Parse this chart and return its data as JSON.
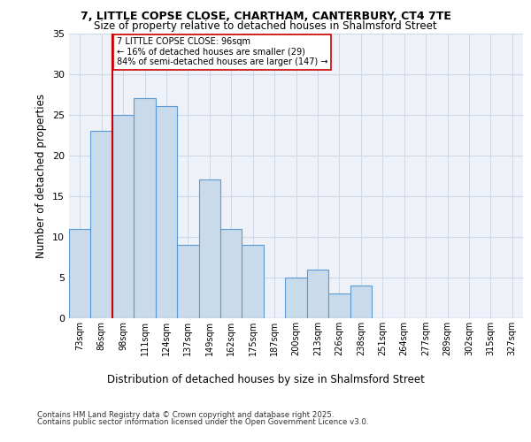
{
  "title_line1": "7, LITTLE COPSE CLOSE, CHARTHAM, CANTERBURY, CT4 7TE",
  "title_line2": "Size of property relative to detached houses in Shalmsford Street",
  "xlabel": "Distribution of detached houses by size in Shalmsford Street",
  "ylabel": "Number of detached properties",
  "categories": [
    "73sqm",
    "86sqm",
    "98sqm",
    "111sqm",
    "124sqm",
    "137sqm",
    "149sqm",
    "162sqm",
    "175sqm",
    "187sqm",
    "200sqm",
    "213sqm",
    "226sqm",
    "238sqm",
    "251sqm",
    "264sqm",
    "277sqm",
    "289sqm",
    "302sqm",
    "315sqm",
    "327sqm"
  ],
  "values": [
    11,
    23,
    25,
    27,
    26,
    9,
    17,
    11,
    9,
    0,
    5,
    6,
    3,
    4,
    0,
    0,
    0,
    0,
    0,
    0,
    0
  ],
  "bar_color": "#c9daea",
  "bar_edge_color": "#5b9bd5",
  "subject_line_color": "#cc0000",
  "annotation_text": "7 LITTLE COPSE CLOSE: 96sqm\n← 16% of detached houses are smaller (29)\n84% of semi-detached houses are larger (147) →",
  "annotation_box_edge_color": "#cc0000",
  "grid_color": "#d0d8e8",
  "bg_color": "#eef2f8",
  "footer_line1": "Contains HM Land Registry data © Crown copyright and database right 2025.",
  "footer_line2": "Contains public sector information licensed under the Open Government Licence v3.0.",
  "ylim": [
    0,
    35
  ],
  "yticks": [
    0,
    5,
    10,
    15,
    20,
    25,
    30,
    35
  ]
}
